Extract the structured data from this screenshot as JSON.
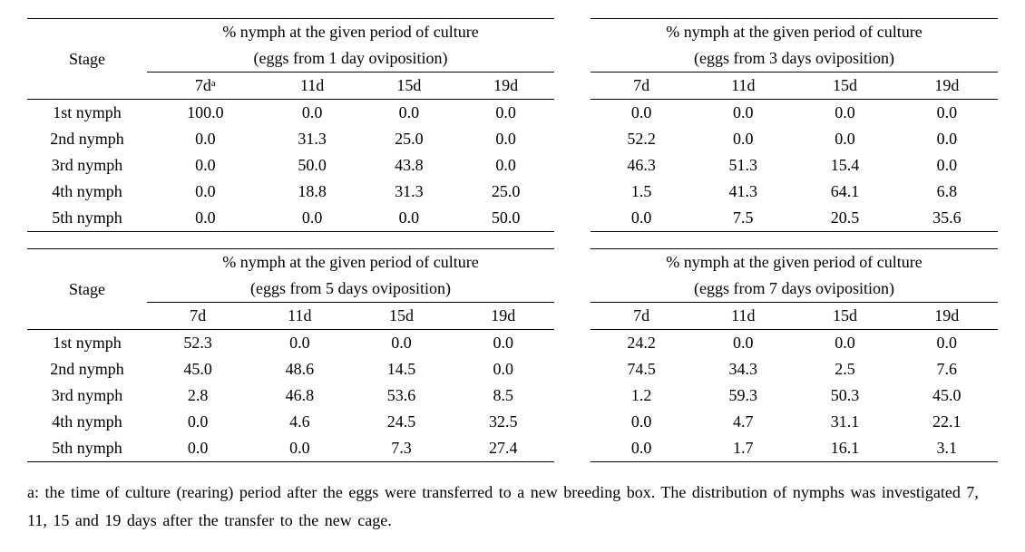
{
  "text_color": "#000000",
  "background_color": "#ffffff",
  "border_color": "#000000",
  "font_family": "Times New Roman",
  "base_font_size_pt": 13,
  "tables": [
    {
      "stage_label": "Stage",
      "left": {
        "title_line1": "% nymph at the given period of culture",
        "title_line2": "(eggs from 1 day oviposition)",
        "cols": [
          "7dᵃ",
          "11d",
          "15d",
          "19d"
        ]
      },
      "right": {
        "title_line1": "% nymph at the given period of culture",
        "title_line2": "(eggs from 3 days oviposition)",
        "cols": [
          "7d",
          "11d",
          "15d",
          "19d"
        ]
      },
      "rows": [
        {
          "label": "1st nymph",
          "left": [
            "100.0",
            "0.0",
            "0.0",
            "0.0"
          ],
          "right": [
            "0.0",
            "0.0",
            "0.0",
            "0.0"
          ]
        },
        {
          "label": "2nd nymph",
          "left": [
            "0.0",
            "31.3",
            "25.0",
            "0.0"
          ],
          "right": [
            "52.2",
            "0.0",
            "0.0",
            "0.0"
          ]
        },
        {
          "label": "3rd nymph",
          "left": [
            "0.0",
            "50.0",
            "43.8",
            "0.0"
          ],
          "right": [
            "46.3",
            "51.3",
            "15.4",
            "0.0"
          ]
        },
        {
          "label": "4th nymph",
          "left": [
            "0.0",
            "18.8",
            "31.3",
            "25.0"
          ],
          "right": [
            "1.5",
            "41.3",
            "64.1",
            "6.8"
          ]
        },
        {
          "label": "5th nymph",
          "left": [
            "0.0",
            "0.0",
            "0.0",
            "50.0"
          ],
          "right": [
            "0.0",
            "7.5",
            "20.5",
            "35.6"
          ]
        }
      ]
    },
    {
      "stage_label": "Stage",
      "left": {
        "title_line1": "% nymph at the given period of culture",
        "title_line2": "(eggs from 5 days oviposition)",
        "cols": [
          "7d",
          "11d",
          "15d",
          "19d"
        ]
      },
      "right": {
        "title_line1": "% nymph at the given period of culture",
        "title_line2": "(eggs from 7 days oviposition)",
        "cols": [
          "7d",
          "11d",
          "15d",
          "19d"
        ]
      },
      "rows": [
        {
          "label": "1st nymph",
          "left": [
            "52.3",
            "0.0",
            "0.0",
            "0.0"
          ],
          "right": [
            "24.2",
            "0.0",
            "0.0",
            "0.0"
          ]
        },
        {
          "label": "2nd nymph",
          "left": [
            "45.0",
            "48.6",
            "14.5",
            "0.0"
          ],
          "right": [
            "74.5",
            "34.3",
            "2.5",
            "7.6"
          ]
        },
        {
          "label": "3rd nymph",
          "left": [
            "2.8",
            "46.8",
            "53.6",
            "8.5"
          ],
          "right": [
            "1.2",
            "59.3",
            "50.3",
            "45.0"
          ]
        },
        {
          "label": "4th nymph",
          "left": [
            "0.0",
            "4.6",
            "24.5",
            "32.5"
          ],
          "right": [
            "0.0",
            "4.7",
            "31.1",
            "22.1"
          ]
        },
        {
          "label": "5th nymph",
          "left": [
            "0.0",
            "0.0",
            "7.3",
            "27.4"
          ],
          "right": [
            "0.0",
            "1.7",
            "16.1",
            "3.1"
          ]
        }
      ]
    }
  ],
  "footnote": "a: the time of culture (rearing) period after the eggs were transferred to a new breeding box. The distribution of nymphs was investigated 7, 11, 15 and 19 days after the transfer to the new cage."
}
